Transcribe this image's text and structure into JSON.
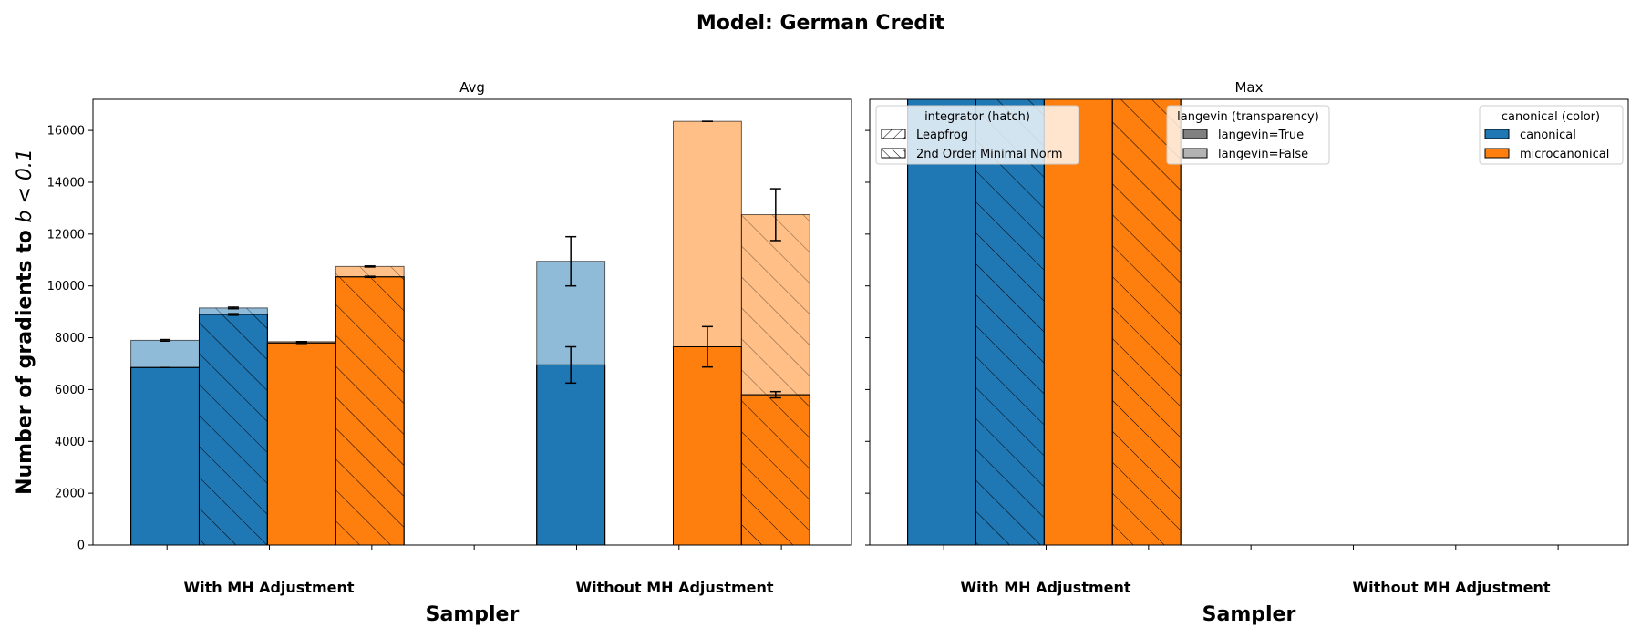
{
  "title": "Model: German Credit",
  "colors": {
    "canonical": "#1f77b4",
    "microcanonical": "#ff7f0e",
    "edge": "#000000"
  },
  "chart_data": [
    {
      "type": "bar",
      "title": "Avg",
      "xlabel": "Sampler",
      "ylabel": "Number of gradients to $b < 0.1$",
      "ylabel_text": "Number of gradients to ",
      "ylabel_math": "b < 0.1",
      "ylim": [
        0,
        17200
      ],
      "yticks": [
        0,
        2000,
        4000,
        6000,
        8000,
        10000,
        12000,
        14000,
        16000
      ],
      "yticklabels": [
        "0",
        "2000",
        "4000",
        "6000",
        "8000",
        "10000",
        "12000",
        "14000",
        "16000"
      ],
      "categories": [
        "With MH Adjustment",
        "Without MH Adjustment"
      ],
      "series": [
        {
          "name": "canonical / Leapfrog",
          "color_key": "canonical",
          "hatch": "leapfrog",
          "values_true": [
            6850,
            6950
          ],
          "values_false": [
            7900,
            10950
          ],
          "err_true": [
            0,
            700
          ],
          "err_false": [
            30,
            950
          ]
        },
        {
          "name": "canonical / 2nd Order Minimal Norm",
          "color_key": "canonical",
          "hatch": "mn",
          "values_true": [
            8900,
            null
          ],
          "values_false": [
            9150,
            null
          ],
          "err_true": [
            30,
            0
          ],
          "err_false": [
            30,
            0
          ]
        },
        {
          "name": "microcanonical / Leapfrog",
          "color_key": "microcanonical",
          "hatch": "leapfrog",
          "values_true": [
            7800,
            7650
          ],
          "values_false": [
            7850,
            16350
          ],
          "err_true": [
            20,
            780
          ],
          "err_false": [
            0,
            0
          ]
        },
        {
          "name": "microcanonical / 2nd Order Minimal Norm",
          "color_key": "microcanonical",
          "hatch": "mn",
          "values_true": [
            10350,
            5800
          ],
          "values_false": [
            10750,
            12750
          ],
          "err_true": [
            20,
            120
          ],
          "err_false": [
            20,
            1000
          ]
        }
      ],
      "grid": false
    },
    {
      "type": "bar",
      "title": "Max",
      "xlabel": "Sampler",
      "ylim": [
        0,
        17200
      ],
      "categories": [
        "With MH Adjustment",
        "Without MH Adjustment"
      ],
      "series": [
        {
          "name": "canonical / Leapfrog",
          "color_key": "canonical",
          "hatch": "leapfrog",
          "values_true": [
            1000000,
            null
          ]
        },
        {
          "name": "canonical / 2nd Order Minimal Norm",
          "color_key": "canonical",
          "hatch": "mn",
          "values_true": [
            1000000,
            null
          ]
        },
        {
          "name": "microcanonical / Leapfrog",
          "color_key": "microcanonical",
          "hatch": "leapfrog",
          "values_true": [
            1000000,
            null
          ]
        },
        {
          "name": "microcanonical / 2nd Order Minimal Norm",
          "color_key": "microcanonical",
          "hatch": "mn",
          "values_true": [
            1000000,
            null
          ]
        }
      ],
      "grid": false,
      "y_shared_with": "Avg"
    }
  ],
  "legends": [
    {
      "title": "integrator (hatch)",
      "entries": [
        "Leapfrog",
        "2nd Order Minimal Norm"
      ],
      "placement": "upper-left"
    },
    {
      "title": "langevin (transparency)",
      "entries": [
        "langevin=True",
        "langevin=False"
      ],
      "placement": "upper-center"
    },
    {
      "title": "canonical (color)",
      "entries": [
        "canonical",
        "microcanonical"
      ],
      "placement": "upper-right"
    }
  ]
}
